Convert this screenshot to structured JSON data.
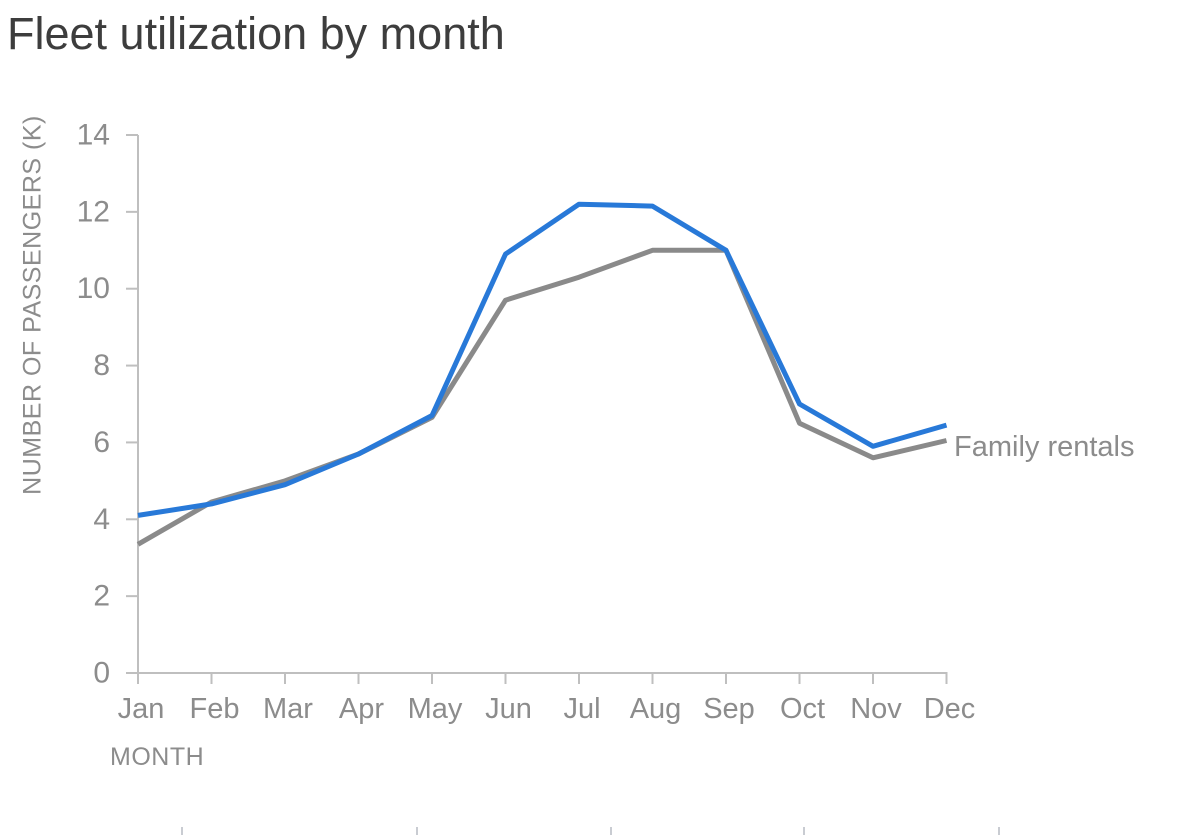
{
  "chart": {
    "title": "Fleet utilization by month",
    "x_axis_title": "MONTH",
    "y_axis_title": "NUMBER OF PASSENGERS (K)",
    "series_end_label": "Family rentals"
  },
  "chart_data": {
    "type": "line",
    "title": "Fleet utilization by month",
    "xlabel": "MONTH",
    "ylabel": "NUMBER OF PASSENGERS (K)",
    "categories": [
      "Jan",
      "Feb",
      "Mar",
      "Apr",
      "May",
      "Jun",
      "Jul",
      "Aug",
      "Sep",
      "Oct",
      "Nov",
      "Dec"
    ],
    "series": [
      {
        "name": "Family rentals",
        "color": "#8a8a8a",
        "values": [
          3.35,
          4.45,
          5.0,
          5.7,
          6.65,
          9.7,
          10.3,
          11.0,
          11.0,
          6.5,
          5.6,
          6.05
        ],
        "labeled_at_line_end": true
      },
      {
        "name": "",
        "color": "#2879d8",
        "values": [
          4.1,
          4.4,
          4.9,
          5.7,
          6.7,
          10.9,
          12.2,
          12.15,
          11.0,
          7.0,
          5.9,
          6.45
        ],
        "labeled_at_line_end": false
      }
    ],
    "ylim": [
      0,
      14
    ],
    "ytick_step": 2,
    "grid": false,
    "legend_position": "label-at-end-of-gray-line"
  },
  "colors": {
    "title_text": "#3d3d3d",
    "axis_text": "#8c8c8c",
    "axis_line": "#bfbfbf",
    "series_blue": "#2879d8",
    "series_gray": "#8a8a8a",
    "bottom_edge_tick": "#c9ccd2"
  },
  "bottom_edge_ticks": {
    "x_positions": [
      181,
      416,
      610,
      803,
      998
    ]
  }
}
